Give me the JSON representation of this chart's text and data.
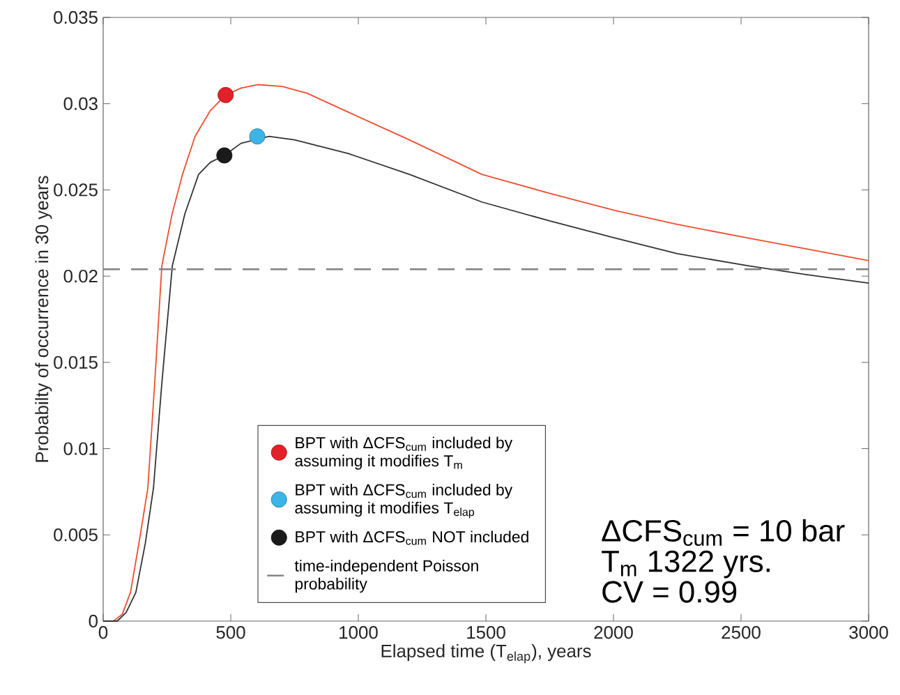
{
  "chart_data": {
    "type": "line",
    "xlabel": "Elapsed time (T$_{elap}$), years",
    "ylabel": "Probabilty of occurrence in 30 years",
    "xlim": [
      0,
      3000
    ],
    "ylim": [
      0,
      0.035
    ],
    "xticks": [
      0,
      500,
      1000,
      1500,
      2000,
      2500,
      3000
    ],
    "yticks": [
      0,
      0.005,
      0.01,
      0.015,
      0.02,
      0.025,
      0.03,
      0.035
    ],
    "grid": false,
    "legend": "bottom",
    "series": [
      {
        "type": "line",
        "color": "#ee4d2e",
        "marker": "none",
        "line_style": "solid",
        "x": [
          0,
          40,
          75,
          107,
          140,
          175,
          202,
          230,
          270,
          311,
          360,
          420,
          480,
          540,
          607,
          700,
          800,
          962,
          1200,
          1484,
          1750,
          2008,
          2250,
          2530,
          2750,
          3000
        ],
        "values": [
          0,
          0,
          0.0004,
          0.00166,
          0.0045,
          0.0077,
          0.0138,
          0.0206,
          0.0236,
          0.0259,
          0.0281,
          0.0296,
          0.0305,
          0.0309,
          0.0311,
          0.031,
          0.0306,
          0.0295,
          0.0279,
          0.0259,
          0.0248,
          0.0238,
          0.023,
          0.0222,
          0.0216,
          0.0209
        ]
      },
      {
        "type": "line",
        "color": "#333333",
        "marker": "none",
        "line_style": "solid",
        "x": [
          0,
          55,
          90,
          128,
          165,
          197,
          230,
          271,
          320,
          374,
          420,
          475,
          540,
          650,
          750,
          962,
          1200,
          1484,
          1750,
          2008,
          2250,
          2530,
          2750,
          3000
        ],
        "values": [
          0,
          0,
          0.0005,
          0.00166,
          0.0045,
          0.0077,
          0.0138,
          0.0206,
          0.0236,
          0.0259,
          0.0266,
          0.027,
          0.0277,
          0.0281,
          0.0279,
          0.0271,
          0.0259,
          0.0243,
          0.0232,
          0.0222,
          0.0213,
          0.0206,
          0.0201,
          0.0196
        ]
      },
      {
        "type": "scatter",
        "name": "BPT with ΔCFS$_{cum}$ included by assuming it modifies T$_{m}$",
        "color": "#e3202a",
        "marker": "circle",
        "x": [
          480
        ],
        "values": [
          0.0305
        ]
      },
      {
        "type": "scatter",
        "name": "BPT with ΔCFS$_{cum}$ included by assuming it modifies T$_{elap}$",
        "color": "#3cb4e6",
        "marker": "circle",
        "x": [
          604
        ],
        "values": [
          0.0281
        ]
      },
      {
        "type": "scatter",
        "name": "BPT with ΔCFS$_{cum}$ NOT included",
        "color": "#1a1a1a",
        "marker": "circle",
        "x": [
          475
        ],
        "values": [
          0.027
        ]
      }
    ],
    "ref_lines": [
      {
        "axis": "y",
        "value": 0.0204,
        "label": "time-independent Poisson probability",
        "color": "#808080",
        "line_style": "dashed"
      }
    ],
    "annotations": [
      "ΔCFS$_{cum}$ = 10 bar",
      "T$_{m}$ 1322 yrs.",
      "CV = 0.99"
    ]
  }
}
